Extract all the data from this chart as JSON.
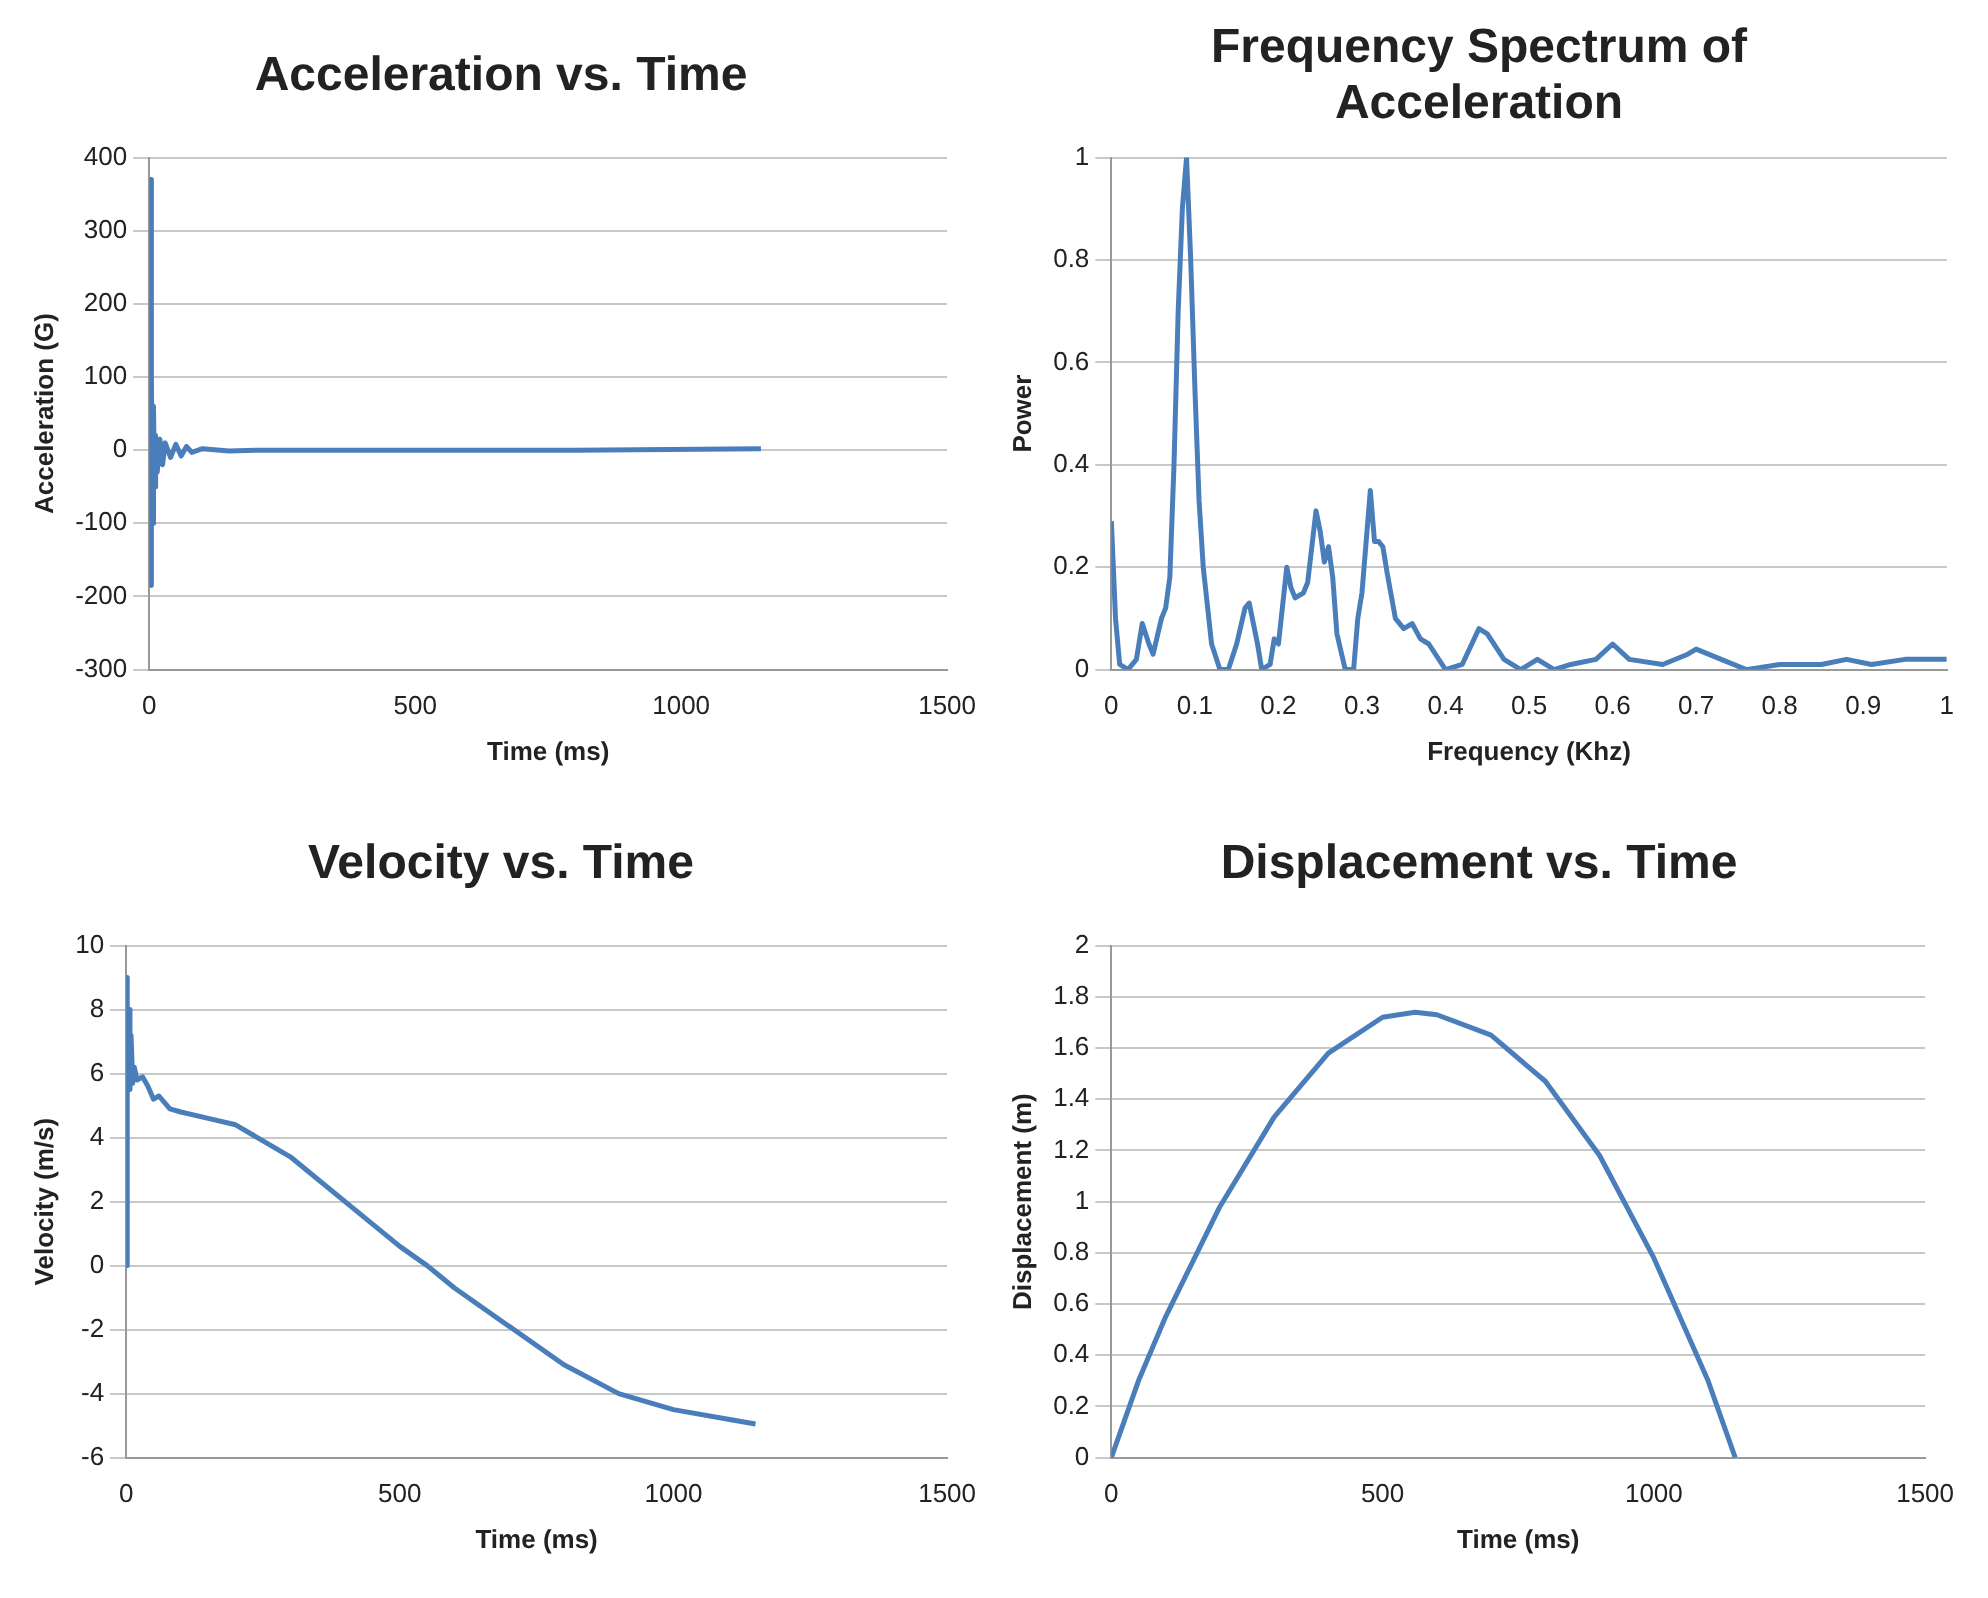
{
  "chart_data": [
    {
      "type": "line",
      "title": "Acceleration vs. Time",
      "xlabel": "Time (ms)",
      "ylabel": "Acceleration (G)",
      "grid": "y",
      "xlim": [
        0,
        1500
      ],
      "xticks": [
        0,
        500,
        1000,
        1500
      ],
      "ylim": [
        -300,
        400
      ],
      "yticks": [
        -300,
        -200,
        -100,
        0,
        100,
        200,
        300,
        400
      ],
      "series": [
        {
          "color": "#4a7ebb",
          "x": [
            0,
            2,
            3,
            5,
            6,
            8,
            10,
            12,
            15,
            20,
            25,
            30,
            40,
            50,
            60,
            70,
            80,
            100,
            150,
            200,
            500,
            800,
            1150
          ],
          "values": [
            0,
            370,
            -185,
            105,
            -100,
            60,
            -50,
            20,
            -30,
            15,
            -20,
            10,
            -10,
            8,
            -8,
            5,
            -3,
            2,
            -1,
            0,
            0,
            0,
            2
          ]
        }
      ]
    },
    {
      "type": "line",
      "title": "Frequency Spectrum of Acceleration",
      "xlabel": "Frequency (Khz)",
      "ylabel": "Power",
      "grid": "y",
      "xlim": [
        0,
        1
      ],
      "xticks": [
        0,
        0.1,
        0.2,
        0.3,
        0.4,
        0.5,
        0.6,
        0.7,
        0.8,
        0.9,
        1
      ],
      "ylim": [
        0,
        1
      ],
      "yticks": [
        0,
        0.2,
        0.4,
        0.6,
        0.8,
        1
      ],
      "series": [
        {
          "color": "#4a7ebb",
          "x": [
            0,
            0.005,
            0.01,
            0.02,
            0.03,
            0.037,
            0.045,
            0.05,
            0.06,
            0.065,
            0.07,
            0.075,
            0.08,
            0.085,
            0.09,
            0.095,
            0.1,
            0.105,
            0.11,
            0.12,
            0.13,
            0.14,
            0.15,
            0.16,
            0.165,
            0.175,
            0.18,
            0.19,
            0.195,
            0.2,
            0.21,
            0.215,
            0.22,
            0.23,
            0.235,
            0.245,
            0.25,
            0.255,
            0.26,
            0.265,
            0.27,
            0.28,
            0.29,
            0.295,
            0.3,
            0.31,
            0.315,
            0.32,
            0.325,
            0.33,
            0.34,
            0.35,
            0.36,
            0.37,
            0.38,
            0.4,
            0.42,
            0.44,
            0.45,
            0.47,
            0.49,
            0.51,
            0.53,
            0.55,
            0.58,
            0.6,
            0.62,
            0.66,
            0.69,
            0.7,
            0.73,
            0.76,
            0.8,
            0.85,
            0.88,
            0.91,
            0.95,
            1
          ],
          "values": [
            0.29,
            0.1,
            0.01,
            0,
            0.02,
            0.09,
            0.05,
            0.03,
            0.1,
            0.12,
            0.18,
            0.4,
            0.7,
            0.9,
            1,
            0.8,
            0.55,
            0.33,
            0.2,
            0.05,
            0,
            0,
            0.05,
            0.12,
            0.13,
            0.05,
            0,
            0.01,
            0.06,
            0.05,
            0.2,
            0.16,
            0.14,
            0.15,
            0.17,
            0.31,
            0.27,
            0.21,
            0.24,
            0.18,
            0.07,
            0,
            0,
            0.1,
            0.15,
            0.35,
            0.25,
            0.25,
            0.24,
            0.19,
            0.1,
            0.08,
            0.09,
            0.06,
            0.05,
            0,
            0.01,
            0.08,
            0.07,
            0.02,
            0,
            0.02,
            0,
            0.01,
            0.02,
            0.05,
            0.02,
            0.01,
            0.03,
            0.04,
            0.02,
            0,
            0.01,
            0.01,
            0.02,
            0.01,
            0.02,
            0.02
          ]
        }
      ]
    },
    {
      "type": "line",
      "title": "Velocity vs. Time",
      "xlabel": "Time (ms)",
      "ylabel": "Velocity (m/s)",
      "grid": "y",
      "xlim": [
        0,
        1500
      ],
      "xticks": [
        0,
        500,
        1000,
        1500
      ],
      "ylim": [
        -6,
        10
      ],
      "yticks": [
        -6,
        -4,
        -2,
        0,
        2,
        4,
        6,
        8,
        10
      ],
      "series": [
        {
          "color": "#4a7ebb",
          "x": [
            0,
            1,
            3,
            5,
            7,
            9,
            12,
            15,
            20,
            30,
            40,
            50,
            60,
            80,
            100,
            150,
            200,
            250,
            300,
            400,
            500,
            550,
            600,
            700,
            800,
            900,
            1000,
            1100,
            1150
          ],
          "values": [
            0,
            9,
            6,
            8,
            5.5,
            7.2,
            5.7,
            6.2,
            5.8,
            5.9,
            5.6,
            5.2,
            5.3,
            4.9,
            4.8,
            4.6,
            4.4,
            3.9,
            3.4,
            2,
            0.6,
            0,
            -0.7,
            -1.9,
            -3.1,
            -4,
            -4.5,
            -4.8,
            -4.95
          ]
        }
      ]
    },
    {
      "type": "line",
      "title": "Displacement vs. Time",
      "xlabel": "Time (ms)",
      "ylabel": "Displacement (m)",
      "grid": "y",
      "xlim": [
        0,
        1500
      ],
      "xticks": [
        0,
        500,
        1000,
        1500
      ],
      "ylim": [
        0,
        2
      ],
      "yticks": [
        0,
        0.2,
        0.4,
        0.6,
        0.8,
        1,
        1.2,
        1.4,
        1.6,
        1.8,
        2
      ],
      "series": [
        {
          "color": "#4a7ebb",
          "x": [
            0,
            50,
            100,
            200,
            300,
            400,
            500,
            560,
            600,
            700,
            800,
            900,
            1000,
            1100,
            1150
          ],
          "values": [
            0,
            0.3,
            0.55,
            0.98,
            1.33,
            1.58,
            1.72,
            1.74,
            1.73,
            1.65,
            1.47,
            1.18,
            0.78,
            0.3,
            0
          ]
        }
      ]
    }
  ]
}
